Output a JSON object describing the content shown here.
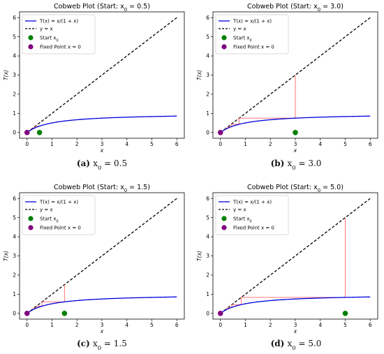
{
  "chart_data": [
    {
      "type": "line",
      "panel_label": "(a)",
      "caption": "x_0 = 0.5",
      "title": "Cobweb Plot (Start: x_0 = 0.5)",
      "xlabel": "x",
      "ylabel": "T(x)",
      "xlim": [
        -0.3,
        6.3
      ],
      "ylim": [
        -0.3,
        6.3
      ],
      "xticks": [
        0,
        1,
        2,
        3,
        4,
        5,
        6
      ],
      "yticks": [
        0,
        1,
        2,
        3,
        4,
        5,
        6
      ],
      "grid": false,
      "legend_position": "top-left",
      "legend": [
        "T(x) = x/(1 + x)",
        "y = x",
        "Start x_0",
        "Fixed Point x = 0"
      ],
      "series": [
        {
          "name": "T(x) = x/(1 + x)",
          "function": "x/(1+x)",
          "color": "#0000dd",
          "style": "solid"
        },
        {
          "name": "y = x",
          "function": "x",
          "color": "#000000",
          "style": "dashed"
        }
      ],
      "cobweb": {
        "color": "#ff6666",
        "path": [
          [
            0.5,
            0.333
          ],
          [
            0.333,
            0.333
          ],
          [
            0.333,
            0.25
          ],
          [
            0.25,
            0.25
          ],
          [
            0.25,
            0.2
          ],
          [
            0.2,
            0.2
          ],
          [
            0.2,
            0.167
          ],
          [
            0.167,
            0.167
          ],
          [
            0.167,
            0.143
          ],
          [
            0.143,
            0.143
          ],
          [
            0.143,
            0.125
          ],
          [
            0.125,
            0.125
          ],
          [
            0.125,
            0.111
          ],
          [
            0.111,
            0.111
          ],
          [
            0.111,
            0.1
          ]
        ]
      },
      "start_point": {
        "x": 0.5,
        "y": 0,
        "color": "#008000"
      },
      "fixed_point": {
        "x": 0,
        "y": 0,
        "color": "#800080"
      }
    },
    {
      "type": "line",
      "panel_label": "(b)",
      "caption": "x_0 = 3.0",
      "title": "Cobweb Plot (Start: x_0 = 3.0)",
      "xlabel": "x",
      "ylabel": "T(x)",
      "xlim": [
        -0.3,
        6.3
      ],
      "ylim": [
        -0.3,
        6.3
      ],
      "xticks": [
        0,
        1,
        2,
        3,
        4,
        5,
        6
      ],
      "yticks": [
        0,
        1,
        2,
        3,
        4,
        5,
        6
      ],
      "grid": false,
      "legend_position": "top-left",
      "legend": [
        "T(x) = x/(1 + x)",
        "y = x",
        "Start x_0",
        "Fixed Point x = 0"
      ],
      "series": [
        {
          "name": "T(x) = x/(1 + x)",
          "function": "x/(1+x)",
          "color": "#0000dd",
          "style": "solid"
        },
        {
          "name": "y = x",
          "function": "x",
          "color": "#000000",
          "style": "dashed"
        }
      ],
      "cobweb": {
        "color": "#ff6666",
        "path": [
          [
            3.0,
            3.0
          ],
          [
            3.0,
            0.75
          ],
          [
            0.75,
            0.75
          ],
          [
            0.75,
            0.429
          ],
          [
            0.429,
            0.429
          ],
          [
            0.429,
            0.3
          ],
          [
            0.3,
            0.3
          ],
          [
            0.3,
            0.231
          ],
          [
            0.231,
            0.231
          ],
          [
            0.231,
            0.188
          ],
          [
            0.188,
            0.188
          ],
          [
            0.188,
            0.158
          ],
          [
            0.158,
            0.158
          ]
        ]
      },
      "start_point": {
        "x": 3.0,
        "y": 0,
        "color": "#008000"
      },
      "fixed_point": {
        "x": 0,
        "y": 0,
        "color": "#800080"
      }
    },
    {
      "type": "line",
      "panel_label": "(c)",
      "caption": "x_0 = 1.5",
      "title": "Cobweb Plot (Start: x_0 = 1.5)",
      "xlabel": "x",
      "ylabel": "T(x)",
      "xlim": [
        -0.3,
        6.3
      ],
      "ylim": [
        -0.3,
        6.3
      ],
      "xticks": [
        0,
        1,
        2,
        3,
        4,
        5,
        6
      ],
      "yticks": [
        0,
        1,
        2,
        3,
        4,
        5,
        6
      ],
      "grid": false,
      "legend_position": "top-left",
      "legend": [
        "T(x) = x/(1 + x)",
        "y = x",
        "Start x_0",
        "Fixed Point x = 0"
      ],
      "series": [
        {
          "name": "T(x) = x/(1 + x)",
          "function": "x/(1+x)",
          "color": "#0000dd",
          "style": "solid"
        },
        {
          "name": "y = x",
          "function": "x",
          "color": "#000000",
          "style": "dashed"
        }
      ],
      "cobweb": {
        "color": "#ff6666",
        "path": [
          [
            1.5,
            1.5
          ],
          [
            1.5,
            0.6
          ],
          [
            0.6,
            0.6
          ],
          [
            0.6,
            0.375
          ],
          [
            0.375,
            0.375
          ],
          [
            0.375,
            0.273
          ],
          [
            0.273,
            0.273
          ],
          [
            0.273,
            0.214
          ],
          [
            0.214,
            0.214
          ],
          [
            0.214,
            0.176
          ],
          [
            0.176,
            0.176
          ],
          [
            0.176,
            0.15
          ],
          [
            0.15,
            0.15
          ]
        ]
      },
      "start_point": {
        "x": 1.5,
        "y": 0,
        "color": "#008000"
      },
      "fixed_point": {
        "x": 0,
        "y": 0,
        "color": "#800080"
      }
    },
    {
      "type": "line",
      "panel_label": "(d)",
      "caption": "x_0 = 5.0",
      "title": "Cobweb Plot (Start: x_0 = 5.0)",
      "xlabel": "x",
      "ylabel": "T(x)",
      "xlim": [
        -0.3,
        6.3
      ],
      "ylim": [
        -0.3,
        6.3
      ],
      "xticks": [
        0,
        1,
        2,
        3,
        4,
        5,
        6
      ],
      "yticks": [
        0,
        1,
        2,
        3,
        4,
        5,
        6
      ],
      "grid": false,
      "legend_position": "top-left",
      "legend": [
        "T(x) = x/(1 + x)",
        "y = x",
        "Start x_0",
        "Fixed Point x = 0"
      ],
      "series": [
        {
          "name": "T(x) = x/(1 + x)",
          "function": "x/(1+x)",
          "color": "#0000dd",
          "style": "solid"
        },
        {
          "name": "y = x",
          "function": "x",
          "color": "#000000",
          "style": "dashed"
        }
      ],
      "cobweb": {
        "color": "#ff6666",
        "path": [
          [
            5.0,
            5.0
          ],
          [
            5.0,
            0.833
          ],
          [
            0.833,
            0.833
          ],
          [
            0.833,
            0.455
          ],
          [
            0.455,
            0.455
          ],
          [
            0.455,
            0.313
          ],
          [
            0.313,
            0.313
          ],
          [
            0.313,
            0.238
          ],
          [
            0.238,
            0.238
          ],
          [
            0.238,
            0.192
          ],
          [
            0.192,
            0.192
          ],
          [
            0.192,
            0.161
          ],
          [
            0.161,
            0.161
          ]
        ]
      },
      "start_point": {
        "x": 5.0,
        "y": 0,
        "color": "#008000"
      },
      "fixed_point": {
        "x": 0,
        "y": 0,
        "color": "#800080"
      }
    }
  ]
}
